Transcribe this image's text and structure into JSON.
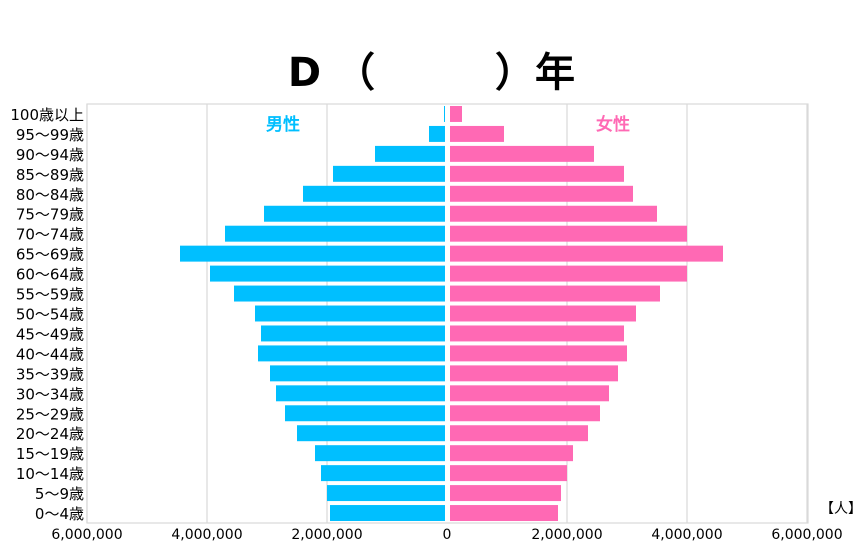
{
  "chart_data": {
    "type": "bar",
    "orientation": "horizontal",
    "subtype": "population-pyramid",
    "title": "D （　　　）年",
    "unit_label": "【人】",
    "xlim": [
      -6000000,
      6000000
    ],
    "x_ticks": [
      -6000000,
      -4000000,
      -2000000,
      0,
      2000000,
      4000000,
      6000000
    ],
    "x_tick_labels": [
      "6,000,000",
      "4,000,000",
      "2,000,000",
      "0",
      "2,000,000",
      "4,000,000",
      "6,000,000"
    ],
    "grid": true,
    "categories": [
      "100歳以上",
      "95～99歳",
      "90～94歳",
      "85～89歳",
      "80～84歳",
      "75～79歳",
      "70～74歳",
      "65～69歳",
      "60～64歳",
      "55～59歳",
      "50～54歳",
      "45～49歳",
      "40～44歳",
      "35～39歳",
      "30～34歳",
      "25～29歳",
      "20～24歳",
      "15～19歳",
      "10～14歳",
      "5～9歳",
      "0～4歳"
    ],
    "series": [
      {
        "name": "男性",
        "color": "#00bfff",
        "values": [
          50000,
          300000,
          1200000,
          1900000,
          2400000,
          3050000,
          3700000,
          4450000,
          3950000,
          3550000,
          3200000,
          3100000,
          3150000,
          2950000,
          2850000,
          2700000,
          2500000,
          2200000,
          2100000,
          2000000,
          1950000
        ]
      },
      {
        "name": "女性",
        "color": "#ff69b4",
        "values": [
          250000,
          950000,
          2450000,
          2950000,
          3100000,
          3500000,
          4000000,
          4600000,
          4000000,
          3550000,
          3150000,
          2950000,
          3000000,
          2850000,
          2700000,
          2550000,
          2350000,
          2100000,
          2000000,
          1900000,
          1850000
        ]
      }
    ]
  }
}
